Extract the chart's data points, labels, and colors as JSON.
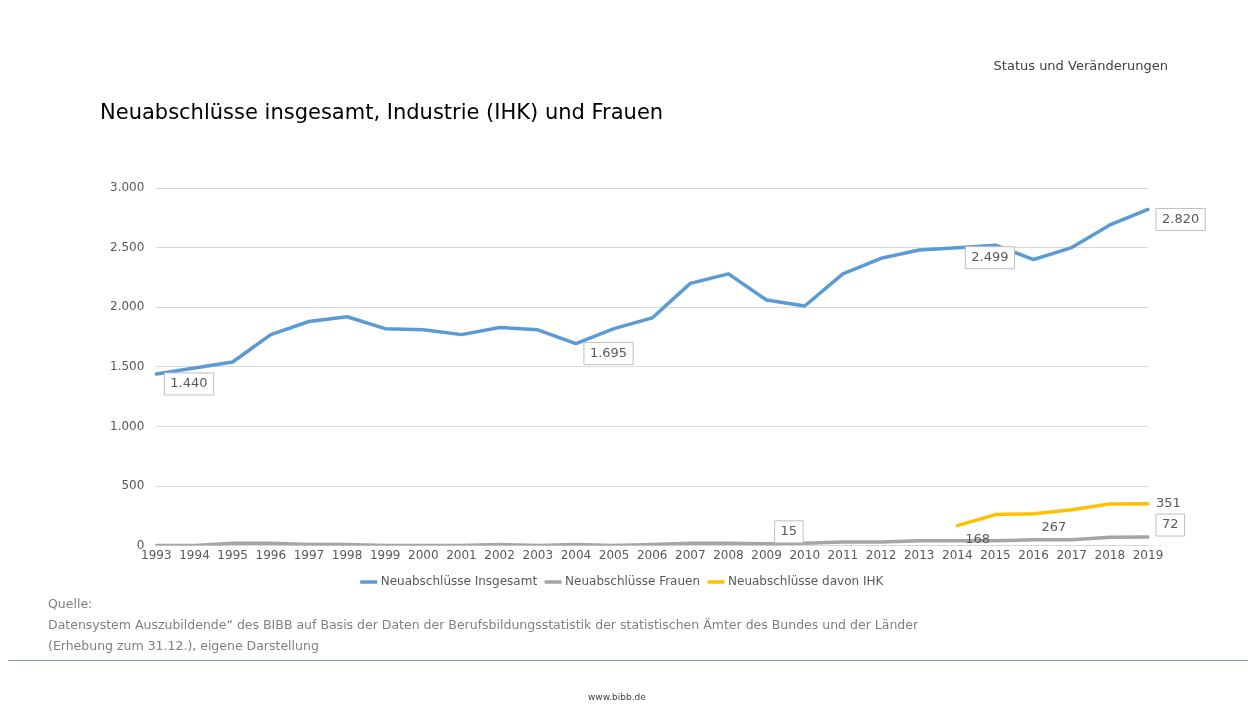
{
  "chart_data": {
    "type": "line",
    "title": "Neuabschlüsse insgesamt, Industrie (IHK) und Frauen",
    "subtitle": "Status und Veränderungen",
    "categories": [
      "1993",
      "1994",
      "1995",
      "1996",
      "1997",
      "1998",
      "1999",
      "2000",
      "2001",
      "2002",
      "2003",
      "2004",
      "2005",
      "2006",
      "2007",
      "2008",
      "2009",
      "2010",
      "2011",
      "2012",
      "2013",
      "2014",
      "2015",
      "2016",
      "2017",
      "2018",
      "2019"
    ],
    "series": [
      {
        "name": "Neuabschlüsse Insgesamt",
        "color": "#5b9bd5",
        "values": [
          1440,
          1490,
          1540,
          1770,
          1880,
          1920,
          1820,
          1810,
          1770,
          1830,
          1810,
          1695,
          1820,
          1910,
          2200,
          2280,
          2060,
          2010,
          2280,
          2410,
          2480,
          2499,
          2520,
          2400,
          2500,
          2690,
          2820
        ],
        "value_labels": [
          "1.440",
          null,
          null,
          null,
          null,
          null,
          null,
          null,
          null,
          null,
          null,
          "1.695",
          null,
          null,
          null,
          null,
          null,
          null,
          null,
          null,
          null,
          "2.499",
          null,
          null,
          null,
          null,
          "2.820"
        ]
      },
      {
        "name": "Neuabschlüsse Frauen",
        "color": "#a5a5a5",
        "values": [
          0,
          0,
          20,
          20,
          10,
          10,
          0,
          0,
          0,
          10,
          0,
          10,
          0,
          10,
          20,
          20,
          15,
          20,
          30,
          30,
          40,
          40,
          40,
          50,
          50,
          70,
          72
        ],
        "value_labels": [
          null,
          null,
          null,
          null,
          null,
          null,
          null,
          null,
          null,
          null,
          null,
          null,
          null,
          null,
          null,
          null,
          "15",
          null,
          null,
          null,
          null,
          null,
          null,
          null,
          null,
          null,
          "72"
        ]
      },
      {
        "name": "Neuabschlüsse davon IHK",
        "color": "#ffc000",
        "values": [
          null,
          null,
          null,
          null,
          null,
          null,
          null,
          null,
          null,
          null,
          null,
          null,
          null,
          null,
          null,
          null,
          null,
          null,
          null,
          null,
          null,
          168,
          260,
          267,
          300,
          350,
          351
        ],
        "value_labels": [
          null,
          null,
          null,
          null,
          null,
          null,
          null,
          null,
          null,
          null,
          null,
          null,
          null,
          null,
          null,
          null,
          null,
          null,
          null,
          null,
          null,
          "168",
          null,
          "267",
          null,
          null,
          "351"
        ]
      }
    ],
    "ylim": [
      0,
      3000
    ],
    "yticks": [
      0,
      500,
      {
        "value": 1000,
        "label": "1.000"
      },
      {
        "value": 1500,
        "label": "1.500"
      },
      {
        "value": 2000,
        "label": "2.000"
      },
      {
        "value": 2500,
        "label": "2.500"
      },
      {
        "value": 3000,
        "label": "3.000"
      }
    ],
    "grid": "y",
    "legend": "bottom",
    "marker": "none",
    "line_style": "solid",
    "annotations": [
      "Quelle:\nDatensystem Auszubildende“ des BIBB auf Basis der Daten der Berufsbildungsstatistik der statistischen Ämter des Bundes und der Länder\n(Erhebung zum 31.12.), eigene Darstellung",
      "www.bibb.de"
    ]
  }
}
